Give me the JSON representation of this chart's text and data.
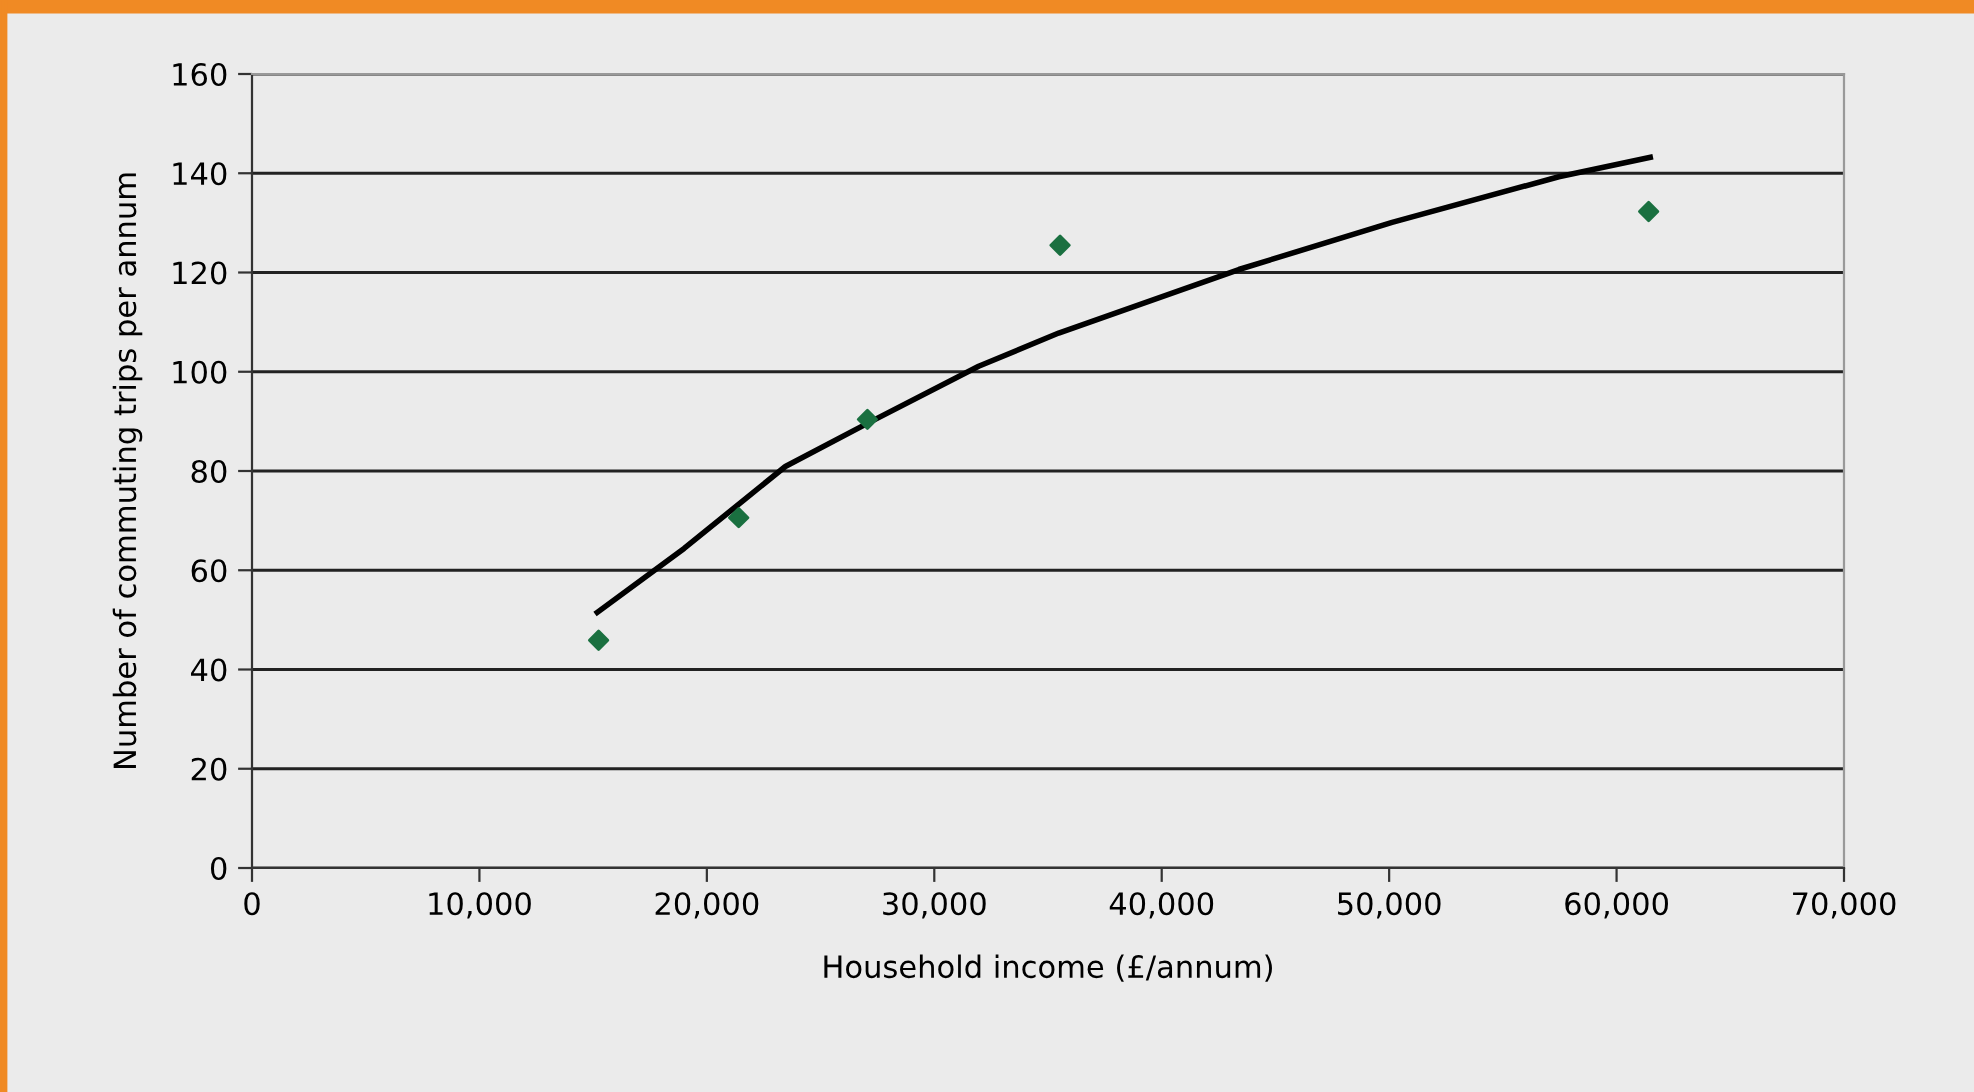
{
  "chart_data": {
    "type": "scatter",
    "xlabel": "Household income (£/annum)",
    "ylabel": "Number of commuting trips per annum",
    "series": [
      {
        "color": "#1a7040",
        "marker": "diamond",
        "x": [
          15240,
          21400,
          27060,
          35530,
          61410
        ],
        "values": [
          45.9,
          70.6,
          90.4,
          125.5,
          132.3
        ]
      },
      {
        "type": "line",
        "color": "#000000",
        "marker": "none",
        "line_style": "solid",
        "x": [
          15180,
          19000,
          23450,
          27060,
          31950,
          35470,
          43390,
          50130,
          57460,
          61480
        ],
        "values": [
          51.5,
          64.4,
          80.9,
          89.6,
          101.1,
          107.8,
          120.6,
          130.1,
          139.3,
          143.2
        ]
      }
    ],
    "xlim": [
      0,
      70000
    ],
    "xticks": [
      {
        "value": 0,
        "label": "0"
      },
      {
        "value": 10000,
        "label": "10,000"
      },
      {
        "value": 20000,
        "label": "20,000"
      },
      {
        "value": 30000,
        "label": "30,000"
      },
      {
        "value": 40000,
        "label": "40,000"
      },
      {
        "value": 50000,
        "label": "50,000"
      },
      {
        "value": 60000,
        "label": "60,000"
      },
      {
        "value": 70000,
        "label": "70,000"
      }
    ],
    "ylim": [
      0,
      160
    ],
    "yticks": [
      0,
      20,
      40,
      60,
      80,
      100,
      120,
      140,
      160
    ],
    "grid": "y"
  }
}
